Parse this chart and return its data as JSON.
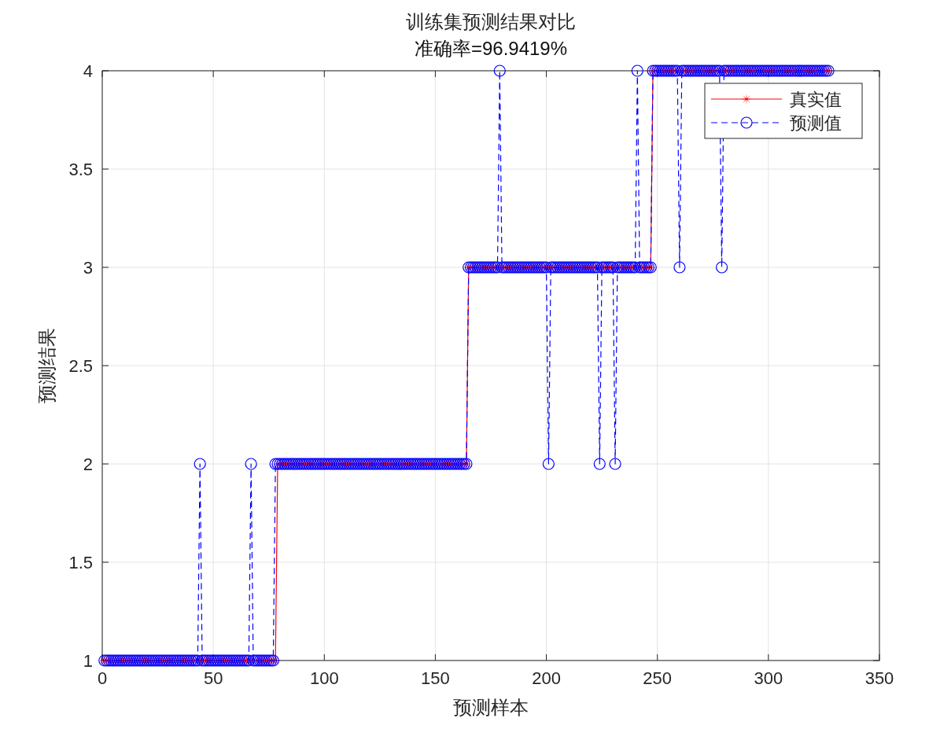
{
  "chart_data": {
    "type": "line",
    "title": "训练集预测结果对比",
    "subtitle": "准确率=96.9419%",
    "xlabel": "预测样本",
    "ylabel": "预测结果",
    "xlim": [
      0,
      350
    ],
    "xticks": [
      0,
      50,
      100,
      150,
      200,
      250,
      300,
      350
    ],
    "ylim": [
      1,
      4
    ],
    "yticks": [
      1,
      1.5,
      2,
      2.5,
      3,
      3.5,
      4
    ],
    "grid": true,
    "legend": "top right",
    "x": [
      1,
      2,
      3,
      4,
      5,
      6,
      7,
      8,
      9,
      10,
      11,
      12,
      13,
      14,
      15,
      16,
      17,
      18,
      19,
      20,
      21,
      22,
      23,
      24,
      25,
      26,
      27,
      28,
      29,
      30,
      31,
      32,
      33,
      34,
      35,
      36,
      37,
      38,
      39,
      40,
      41,
      42,
      43,
      44,
      45,
      46,
      47,
      48,
      49,
      50,
      51,
      52,
      53,
      54,
      55,
      56,
      57,
      58,
      59,
      60,
      61,
      62,
      63,
      64,
      65,
      66,
      67,
      68,
      69,
      70,
      71,
      72,
      73,
      74,
      75,
      76,
      77,
      78,
      79,
      80,
      81,
      82,
      83,
      84,
      85,
      86,
      87,
      88,
      89,
      90,
      91,
      92,
      93,
      94,
      95,
      96,
      97,
      98,
      99,
      100,
      101,
      102,
      103,
      104,
      105,
      106,
      107,
      108,
      109,
      110,
      111,
      112,
      113,
      114,
      115,
      116,
      117,
      118,
      119,
      120,
      121,
      122,
      123,
      124,
      125,
      126,
      127,
      128,
      129,
      130,
      131,
      132,
      133,
      134,
      135,
      136,
      137,
      138,
      139,
      140,
      141,
      142,
      143,
      144,
      145,
      146,
      147,
      148,
      149,
      150,
      151,
      152,
      153,
      154,
      155,
      156,
      157,
      158,
      159,
      160,
      161,
      162,
      163,
      164,
      165,
      166,
      167,
      168,
      169,
      170,
      171,
      172,
      173,
      174,
      175,
      176,
      177,
      178,
      179,
      180,
      181,
      182,
      183,
      184,
      185,
      186,
      187,
      188,
      189,
      190,
      191,
      192,
      193,
      194,
      195,
      196,
      197,
      198,
      199,
      200,
      201,
      202,
      203,
      204,
      205,
      206,
      207,
      208,
      209,
      210,
      211,
      212,
      213,
      214,
      215,
      216,
      217,
      218,
      219,
      220,
      221,
      222,
      223,
      224,
      225,
      226,
      227,
      228,
      229,
      230,
      231,
      232,
      233,
      234,
      235,
      236,
      237,
      238,
      239,
      240,
      241,
      242,
      243,
      244,
      245,
      246,
      247,
      248,
      249,
      250,
      251,
      252,
      253,
      254,
      255,
      256,
      257,
      258,
      259,
      260,
      261,
      262,
      263,
      264,
      265,
      266,
      267,
      268,
      269,
      270,
      271,
      272,
      273,
      274,
      275,
      276,
      277,
      278,
      279,
      280,
      281,
      282,
      283,
      284,
      285,
      286,
      287,
      288,
      289,
      290,
      291,
      292,
      293,
      294,
      295,
      296,
      297,
      298,
      299,
      300,
      301,
      302,
      303,
      304,
      305,
      306,
      307,
      308,
      309,
      310,
      311,
      312,
      313,
      314,
      315,
      316,
      317,
      318,
      319,
      320,
      321,
      322,
      323,
      324,
      325,
      326,
      327
    ],
    "series": [
      {
        "name": "真实值",
        "color": "#ff0000",
        "marker": "star",
        "line_style": "solid",
        "values": [
          1,
          1,
          1,
          1,
          1,
          1,
          1,
          1,
          1,
          1,
          1,
          1,
          1,
          1,
          1,
          1,
          1,
          1,
          1,
          1,
          1,
          1,
          1,
          1,
          1,
          1,
          1,
          1,
          1,
          1,
          1,
          1,
          1,
          1,
          1,
          1,
          1,
          1,
          1,
          1,
          1,
          1,
          1,
          1,
          1,
          1,
          1,
          1,
          1,
          1,
          1,
          1,
          1,
          1,
          1,
          1,
          1,
          1,
          1,
          1,
          1,
          1,
          1,
          1,
          1,
          1,
          1,
          1,
          1,
          1,
          1,
          1,
          1,
          1,
          1,
          1,
          1,
          1,
          2,
          2,
          2,
          2,
          2,
          2,
          2,
          2,
          2,
          2,
          2,
          2,
          2,
          2,
          2,
          2,
          2,
          2,
          2,
          2,
          2,
          2,
          2,
          2,
          2,
          2,
          2,
          2,
          2,
          2,
          2,
          2,
          2,
          2,
          2,
          2,
          2,
          2,
          2,
          2,
          2,
          2,
          2,
          2,
          2,
          2,
          2,
          2,
          2,
          2,
          2,
          2,
          2,
          2,
          2,
          2,
          2,
          2,
          2,
          2,
          2,
          2,
          2,
          2,
          2,
          2,
          2,
          2,
          2,
          2,
          2,
          2,
          2,
          2,
          2,
          2,
          2,
          2,
          2,
          2,
          2,
          2,
          2,
          2,
          2,
          2,
          3,
          3,
          3,
          3,
          3,
          3,
          3,
          3,
          3,
          3,
          3,
          3,
          3,
          3,
          3,
          3,
          3,
          3,
          3,
          3,
          3,
          3,
          3,
          3,
          3,
          3,
          3,
          3,
          3,
          3,
          3,
          3,
          3,
          3,
          3,
          3,
          3,
          3,
          3,
          3,
          3,
          3,
          3,
          3,
          3,
          3,
          3,
          3,
          3,
          3,
          3,
          3,
          3,
          3,
          3,
          3,
          3,
          3,
          3,
          3,
          3,
          3,
          3,
          3,
          3,
          3,
          3,
          3,
          3,
          3,
          3,
          3,
          3,
          3,
          3,
          3,
          3,
          3,
          3,
          3,
          3,
          3,
          3,
          4,
          4,
          4,
          4,
          4,
          4,
          4,
          4,
          4,
          4,
          4,
          4,
          4,
          4,
          4,
          4,
          4,
          4,
          4,
          4,
          4,
          4,
          4,
          4,
          4,
          4,
          4,
          4,
          4,
          4,
          4,
          4,
          4,
          4,
          4,
          4,
          4,
          4,
          4,
          4,
          4,
          4,
          4,
          4,
          4,
          4,
          4,
          4,
          4,
          4,
          4,
          4,
          4,
          4,
          4,
          4,
          4,
          4,
          4,
          4,
          4,
          4,
          4,
          4,
          4,
          4,
          4,
          4,
          4,
          4,
          4,
          4,
          4,
          4,
          4,
          4,
          4,
          4,
          4,
          4
        ]
      },
      {
        "name": "预测值",
        "color": "#0000ff",
        "marker": "circle",
        "line_style": "dashed",
        "values": [
          1,
          1,
          1,
          1,
          1,
          1,
          1,
          1,
          1,
          1,
          1,
          1,
          1,
          1,
          1,
          1,
          1,
          1,
          1,
          1,
          1,
          1,
          1,
          1,
          1,
          1,
          1,
          1,
          1,
          1,
          1,
          1,
          1,
          1,
          1,
          1,
          1,
          1,
          1,
          1,
          1,
          1,
          1,
          2,
          1,
          1,
          1,
          1,
          1,
          1,
          1,
          1,
          1,
          1,
          1,
          1,
          1,
          1,
          1,
          1,
          1,
          1,
          1,
          1,
          1,
          1,
          2,
          1,
          1,
          1,
          1,
          1,
          1,
          1,
          1,
          1,
          1,
          2,
          2,
          2,
          2,
          2,
          2,
          2,
          2,
          2,
          2,
          2,
          2,
          2,
          2,
          2,
          2,
          2,
          2,
          2,
          2,
          2,
          2,
          2,
          2,
          2,
          2,
          2,
          2,
          2,
          2,
          2,
          2,
          2,
          2,
          2,
          2,
          2,
          2,
          2,
          2,
          2,
          2,
          2,
          2,
          2,
          2,
          2,
          2,
          2,
          2,
          2,
          2,
          2,
          2,
          2,
          2,
          2,
          2,
          2,
          2,
          2,
          2,
          2,
          2,
          2,
          2,
          2,
          2,
          2,
          2,
          2,
          2,
          2,
          2,
          2,
          2,
          2,
          2,
          2,
          2,
          2,
          2,
          2,
          2,
          2,
          2,
          2,
          3,
          3,
          3,
          3,
          3,
          3,
          3,
          3,
          3,
          3,
          3,
          3,
          3,
          3,
          4,
          3,
          3,
          3,
          3,
          3,
          3,
          3,
          3,
          3,
          3,
          3,
          3,
          3,
          3,
          3,
          3,
          3,
          3,
          3,
          3,
          3,
          2,
          3,
          3,
          3,
          3,
          3,
          3,
          3,
          3,
          3,
          3,
          3,
          3,
          3,
          3,
          3,
          3,
          3,
          3,
          3,
          3,
          3,
          3,
          2,
          3,
          3,
          3,
          3,
          3,
          3,
          2,
          3,
          3,
          3,
          3,
          3,
          3,
          3,
          3,
          3,
          4,
          3,
          3,
          3,
          3,
          3,
          3,
          4,
          4,
          4,
          4,
          4,
          4,
          4,
          4,
          4,
          4,
          4,
          4,
          3,
          4,
          4,
          4,
          4,
          4,
          4,
          4,
          4,
          4,
          4,
          4,
          4,
          4,
          4,
          4,
          4,
          4,
          4,
          3,
          4,
          4,
          4,
          4,
          4,
          4,
          4,
          4,
          4,
          4,
          4,
          4,
          4,
          4,
          4,
          4,
          4,
          4,
          4,
          4,
          4,
          4,
          4,
          4,
          4,
          4,
          4,
          4,
          4,
          4,
          4,
          4,
          4,
          4,
          4,
          4,
          4,
          4,
          4,
          4,
          4,
          4,
          4,
          4,
          4,
          4,
          4,
          4
        ]
      }
    ]
  }
}
